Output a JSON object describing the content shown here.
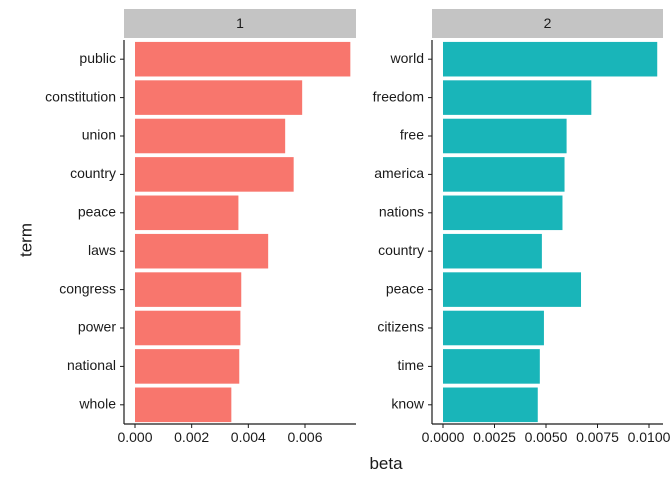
{
  "chart_data": [
    {
      "type": "bar",
      "orientation": "horizontal",
      "facet_label": "1",
      "color": "#F8766D",
      "categories": [
        "public",
        "constitution",
        "union",
        "country",
        "peace",
        "laws",
        "congress",
        "power",
        "national",
        "whole"
      ],
      "values": [
        0.0076,
        0.0059,
        0.0053,
        0.0056,
        0.00365,
        0.0047,
        0.00375,
        0.00372,
        0.00368,
        0.0034
      ],
      "xlim": [
        0,
        0.0078
      ],
      "xticks": [
        0,
        0.002,
        0.004,
        0.006
      ],
      "xtick_labels": [
        "0.000",
        "0.002",
        "0.004",
        "0.006"
      ]
    },
    {
      "type": "bar",
      "orientation": "horizontal",
      "facet_label": "2",
      "color": "#19B5B9",
      "categories": [
        "world",
        "freedom",
        "free",
        "america",
        "nations",
        "country",
        "peace",
        "citizens",
        "time",
        "know"
      ],
      "values": [
        0.0104,
        0.0072,
        0.006,
        0.0059,
        0.0058,
        0.0048,
        0.0067,
        0.0049,
        0.0047,
        0.0046
      ],
      "xlim": [
        0,
        0.01068
      ],
      "xticks": [
        0,
        0.0025,
        0.005,
        0.0075,
        0.01
      ],
      "xtick_labels": [
        "0.0000",
        "0.0025",
        "0.0050",
        "0.0075",
        "0.0100"
      ]
    }
  ],
  "axes": {
    "xlabel": "beta",
    "ylabel": "term"
  }
}
